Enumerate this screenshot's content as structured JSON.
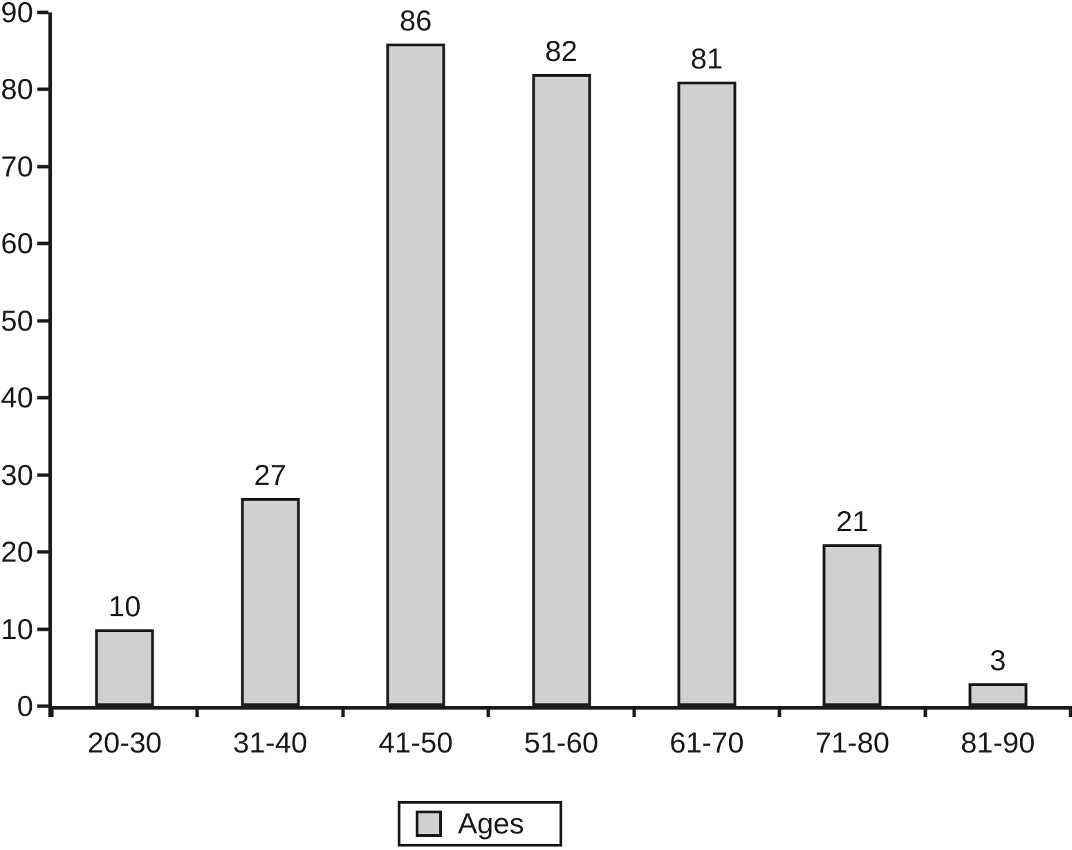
{
  "chart_data": {
    "type": "bar",
    "title": "",
    "xlabel": "",
    "ylabel": "",
    "categories": [
      "20-30",
      "31-40",
      "41-50",
      "51-60",
      "61-70",
      "71-80",
      "81-90"
    ],
    "values": [
      10,
      27,
      86,
      82,
      81,
      21,
      3
    ],
    "value_labels_shown": true,
    "ylim": [
      0,
      90
    ],
    "yticks": [
      0,
      10,
      20,
      30,
      40,
      50,
      60,
      70,
      80,
      90
    ],
    "grid": false,
    "legend": {
      "position": "bottom-center",
      "entries": [
        {
          "label": "Ages",
          "swatch_color": "#d0d0d0"
        }
      ]
    },
    "colors": {
      "bar_fill": "#d0d0d0",
      "bar_border": "#1a1a1a",
      "axis": "#1a1a1a",
      "text": "#1a1a1a",
      "background": "#ffffff"
    }
  }
}
